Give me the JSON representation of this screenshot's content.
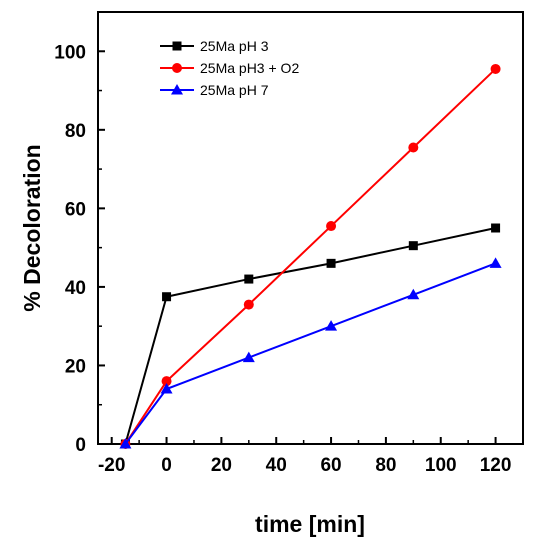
{
  "chart_data": {
    "type": "line",
    "xlabel": "time [min]",
    "ylabel": "% Decoloration",
    "xlim": [
      -25,
      130
    ],
    "ylim": [
      0,
      110
    ],
    "xticks": [
      -20,
      0,
      20,
      40,
      60,
      80,
      100,
      120
    ],
    "yticks": [
      0,
      20,
      40,
      60,
      80,
      100
    ],
    "grid": false,
    "legend_position": "top-left",
    "series": [
      {
        "name": "25Ma pH 3",
        "color": "#000000",
        "marker": "square",
        "x": [
          -15,
          0,
          30,
          60,
          90,
          120
        ],
        "y": [
          0,
          37.5,
          42,
          46,
          50.5,
          55
        ]
      },
      {
        "name": "25Ma pH3 + O2",
        "color": "#ff0000",
        "marker": "circle",
        "x": [
          -15,
          0,
          30,
          60,
          90,
          120
        ],
        "y": [
          0,
          16,
          35.5,
          55.5,
          75.5,
          95.5
        ]
      },
      {
        "name": "25Ma pH 7",
        "color": "#0000ff",
        "marker": "triangle",
        "x": [
          -15,
          0,
          30,
          60,
          90,
          120
        ],
        "y": [
          0,
          14,
          22,
          30,
          38,
          46
        ]
      }
    ]
  }
}
